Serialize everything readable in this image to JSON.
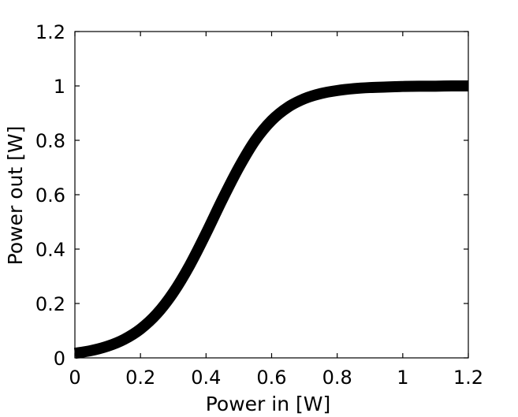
{
  "chart_data": {
    "type": "line",
    "xlabel": "Power in [W]",
    "ylabel": "Power out [W]",
    "xlim": [
      0,
      1.2
    ],
    "ylim": [
      0,
      1.2
    ],
    "xticks": [
      0,
      0.2,
      0.4,
      0.6,
      0.8,
      1,
      1.2
    ],
    "yticks": [
      0,
      0.2,
      0.4,
      0.6,
      0.8,
      1,
      1.2
    ],
    "xtick_labels": [
      "0",
      "0.2",
      "0.4",
      "0.6",
      "0.8",
      "1",
      "1.2"
    ],
    "ytick_labels": [
      "0",
      "0.2",
      "0.4",
      "0.6",
      "0.8",
      "1",
      "1.2"
    ],
    "grid": false,
    "series": [
      {
        "color": "#000000",
        "x": [
          0,
          0.05,
          0.1,
          0.15,
          0.2,
          0.25,
          0.3,
          0.35,
          0.4,
          0.45,
          0.5,
          0.55,
          0.6,
          0.65,
          0.7,
          0.75,
          0.8,
          0.85,
          0.9,
          0.95,
          1.0,
          1.05,
          1.1,
          1.15,
          1.2
        ],
        "y": [
          0.017,
          0.027,
          0.043,
          0.068,
          0.106,
          0.162,
          0.24,
          0.34,
          0.458,
          0.583,
          0.7,
          0.8,
          0.873,
          0.922,
          0.953,
          0.972,
          0.983,
          0.99,
          0.994,
          0.996,
          0.998,
          0.999,
          0.999,
          1.0,
          1.0
        ]
      }
    ]
  }
}
